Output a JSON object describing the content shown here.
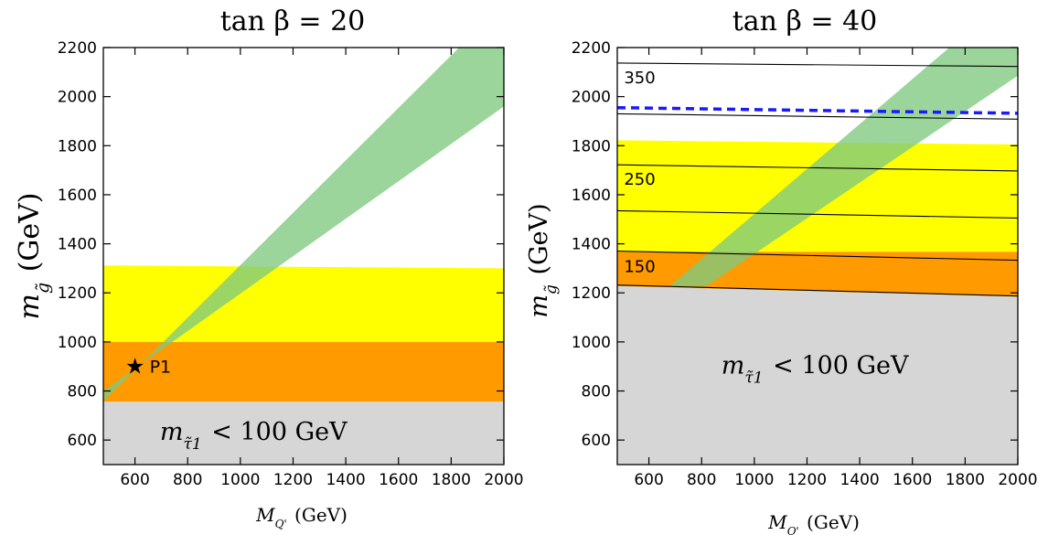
{
  "chart_data": [
    {
      "type": "area",
      "title": "tan β = 20",
      "xlabel": "M_Q' (GeV)",
      "ylabel": "m_g̃ (GeV)",
      "xlim": [
        480,
        2000
      ],
      "ylim": [
        500,
        2200
      ],
      "xticks": [
        600,
        800,
        1000,
        1200,
        1400,
        1600,
        1800,
        2000
      ],
      "yticks": [
        600,
        800,
        1000,
        1200,
        1400,
        1600,
        1800,
        2000,
        2200
      ],
      "colors": {
        "gray": "#d5d6d5",
        "orange": "#ff9a00",
        "yellow": "#ffff00",
        "green": "#7fc97f"
      },
      "regions": [
        {
          "kind": "gray",
          "points": [
            [
              480,
              500
            ],
            [
              2000,
              500
            ],
            [
              2000,
              757
            ],
            [
              480,
              757
            ]
          ]
        },
        {
          "kind": "orange",
          "points": [
            [
              480,
              757
            ],
            [
              2000,
              757
            ],
            [
              2000,
              1000
            ],
            [
              480,
              1000
            ]
          ]
        },
        {
          "kind": "yellow",
          "points": [
            [
              480,
              1000
            ],
            [
              2000,
              1000
            ],
            [
              2000,
              1300
            ],
            [
              480,
              1312
            ]
          ]
        },
        {
          "kind": "green",
          "points": [
            [
              480,
              757
            ],
            [
              1830,
              2200
            ],
            [
              2000,
              2200
            ],
            [
              2000,
              1960
            ],
            [
              480,
              800
            ]
          ]
        }
      ],
      "contours": [],
      "dashed_line": [],
      "region_label": {
        "text": "m_τ̃1 < 100 GeV",
        "x": 1050,
        "y": 635
      },
      "contour_labels": [],
      "point": {
        "label": "P1",
        "x": 600,
        "y": 900
      }
    },
    {
      "type": "area",
      "title": "tan β = 40",
      "xlabel": "M_Q' (GeV)",
      "ylabel": "m_g̃ (GeV)",
      "xlim": [
        480,
        2000
      ],
      "ylim": [
        500,
        2200
      ],
      "xticks": [
        600,
        800,
        1000,
        1200,
        1400,
        1600,
        1800,
        2000
      ],
      "yticks": [
        600,
        800,
        1000,
        1200,
        1400,
        1600,
        1800,
        2000,
        2200
      ],
      "colors": {
        "gray": "#d5d6d5",
        "orange": "#ff9a00",
        "yellow": "#ffff00",
        "green": "#7fc97f"
      },
      "regions": [
        {
          "kind": "gray",
          "points": [
            [
              480,
              500
            ],
            [
              2000,
              500
            ],
            [
              2000,
              1185
            ],
            [
              480,
              1228
            ]
          ]
        },
        {
          "kind": "orange",
          "points": [
            [
              480,
              1228
            ],
            [
              2000,
              1185
            ],
            [
              2000,
              1368
            ],
            [
              480,
              1368
            ]
          ]
        },
        {
          "kind": "yellow",
          "points": [
            [
              480,
              1368
            ],
            [
              2000,
              1368
            ],
            [
              2000,
              1805
            ],
            [
              480,
              1822
            ]
          ]
        },
        {
          "kind": "green",
          "points": [
            [
              680,
              1228
            ],
            [
              1740,
              2200
            ],
            [
              2000,
              2200
            ],
            [
              2000,
              2085
            ],
            [
              820,
              1228
            ]
          ]
        }
      ],
      "contours": [
        [
          [
            480,
            2137
          ],
          [
            2000,
            2123
          ]
        ],
        [
          [
            480,
            1930
          ],
          [
            2000,
            1908
          ]
        ],
        [
          [
            480,
            1722
          ],
          [
            2000,
            1697
          ]
        ],
        [
          [
            480,
            1535
          ],
          [
            2000,
            1505
          ]
        ],
        [
          [
            480,
            1370
          ],
          [
            2000,
            1333
          ]
        ],
        [
          [
            480,
            1232
          ],
          [
            2000,
            1187
          ]
        ]
      ],
      "dashed_line": [
        [
          480,
          1955
        ],
        [
          2000,
          1932
        ]
      ],
      "region_label": {
        "text": "m_τ̃1 < 100 GeV",
        "x": 1230,
        "y": 905
      },
      "contour_labels": [
        {
          "text": "350",
          "x": 565,
          "y": 2055
        },
        {
          "text": "250",
          "x": 565,
          "y": 1640
        },
        {
          "text": "150",
          "x": 565,
          "y": 1285
        }
      ],
      "point": null
    }
  ]
}
